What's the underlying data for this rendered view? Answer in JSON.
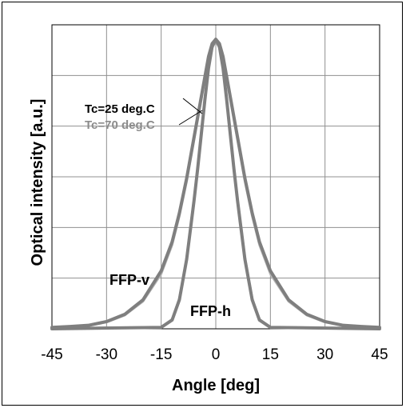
{
  "chart_data": {
    "type": "line",
    "title": "",
    "xlabel": "Angle [deg]",
    "ylabel": "Optical intensity [a.u.]",
    "xlim": [
      -45,
      45
    ],
    "ylim": [
      0,
      1.05
    ],
    "xticks": [
      -45,
      -30,
      -15,
      0,
      15,
      30,
      45
    ],
    "grid": true,
    "series": [
      {
        "name": "Tc=25 deg.C",
        "color": "#7f7f7f",
        "curves": [
          {
            "label": "FFP-v",
            "x": [
              -45,
              -40,
              -35,
              -30,
              -25,
              -20,
              -15,
              -12,
              -10,
              -8,
              -6,
              -4,
              -3,
              -2,
              -1,
              0,
              1,
              2,
              3,
              4,
              6,
              8,
              10,
              12,
              15,
              20,
              25,
              30,
              35,
              40,
              45
            ],
            "y": [
              0.005,
              0.008,
              0.012,
              0.025,
              0.05,
              0.1,
              0.2,
              0.3,
              0.4,
              0.52,
              0.66,
              0.8,
              0.87,
              0.94,
              0.985,
              1.0,
              0.985,
              0.94,
              0.87,
              0.8,
              0.66,
              0.52,
              0.4,
              0.3,
              0.2,
              0.1,
              0.05,
              0.025,
              0.012,
              0.008,
              0.005
            ]
          },
          {
            "label": "FFP-h",
            "x": [
              -45,
              -15,
              -12,
              -10,
              -8,
              -6,
              -5,
              -4,
              -3,
              -2,
              -1,
              0,
              1,
              2,
              3,
              4,
              5,
              6,
              8,
              10,
              12,
              15,
              45
            ],
            "y": [
              0.0,
              0.005,
              0.03,
              0.1,
              0.24,
              0.44,
              0.55,
              0.67,
              0.79,
              0.9,
              0.975,
              1.0,
              0.975,
              0.9,
              0.79,
              0.67,
              0.55,
              0.44,
              0.24,
              0.1,
              0.03,
              0.005,
              0.0
            ]
          }
        ]
      },
      {
        "name": "Tc=70 deg.C",
        "color": "#b4b4b4",
        "curves": [
          {
            "label": "FFP-v",
            "x": [
              -45,
              -40,
              -35,
              -30,
              -25,
              -20,
              -15,
              -12,
              -10,
              -8,
              -6,
              -4,
              -3,
              -2,
              -1,
              0,
              1,
              2,
              3,
              4,
              6,
              8,
              10,
              12,
              15,
              20,
              25,
              30,
              35,
              40,
              45
            ],
            "y": [
              0.004,
              0.007,
              0.011,
              0.023,
              0.047,
              0.095,
              0.19,
              0.29,
              0.39,
              0.51,
              0.65,
              0.79,
              0.865,
              0.935,
              0.98,
              0.995,
              0.98,
              0.935,
              0.865,
              0.79,
              0.65,
              0.51,
              0.39,
              0.29,
              0.19,
              0.095,
              0.047,
              0.023,
              0.011,
              0.007,
              0.004
            ]
          },
          {
            "label": "FFP-h",
            "x": [
              -45,
              -15,
              -12,
              -10,
              -8,
              -6,
              -5,
              -4,
              -3,
              -2,
              -1,
              0,
              1,
              2,
              3,
              4,
              5,
              6,
              8,
              10,
              12,
              15,
              45
            ],
            "y": [
              0.0,
              0.006,
              0.033,
              0.105,
              0.245,
              0.445,
              0.555,
              0.675,
              0.795,
              0.9,
              0.97,
              0.995,
              0.97,
              0.9,
              0.795,
              0.675,
              0.555,
              0.445,
              0.245,
              0.105,
              0.033,
              0.006,
              0.0
            ]
          }
        ]
      }
    ],
    "annotations": [
      {
        "text": "Tc=25 deg.C",
        "color": "#000000"
      },
      {
        "text": "Tc=70 deg.C",
        "color": "#8c8c8c"
      },
      {
        "text": "FFP-v",
        "color": "#000000"
      },
      {
        "text": "FFP-h",
        "color": "#000000"
      }
    ]
  }
}
